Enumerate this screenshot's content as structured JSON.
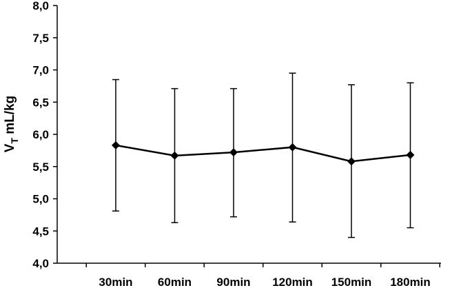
{
  "chart_data": {
    "type": "line",
    "title": "",
    "xlabel": "",
    "ylabel": {
      "main": "V",
      "subscript": "T",
      "rest": " mL/kg"
    },
    "categories": [
      "30min",
      "60min",
      "90min",
      "120min",
      "150min",
      "180min"
    ],
    "series": [
      {
        "values": [
          5.83,
          5.67,
          5.72,
          5.8,
          5.58,
          5.68
        ],
        "error_upper": [
          6.85,
          6.71,
          6.71,
          6.95,
          6.77,
          6.8
        ],
        "error_lower": [
          4.81,
          4.63,
          4.72,
          4.64,
          4.4,
          4.55
        ],
        "marker": "diamond",
        "color": "#000000"
      }
    ],
    "ylim": [
      4.0,
      8.0
    ],
    "yticks": [
      4.0,
      4.5,
      5.0,
      5.5,
      6.0,
      6.5,
      7.0,
      7.5,
      8.0
    ],
    "ytick_labels": [
      "4,0",
      "4,5",
      "5,0",
      "5,5",
      "6,0",
      "6,5",
      "7,0",
      "7,5",
      "8,0"
    ],
    "grid": false,
    "legend": "none"
  }
}
